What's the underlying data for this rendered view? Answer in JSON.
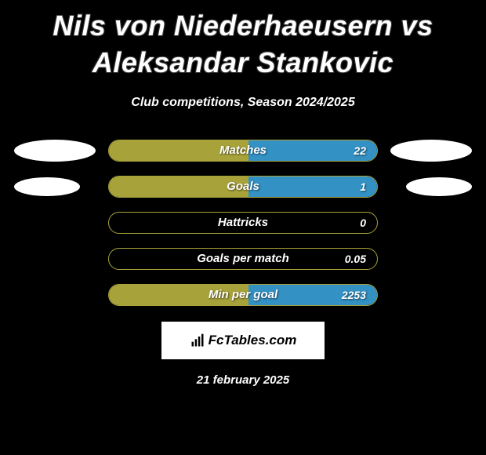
{
  "title": "Nils von Niederhaeusern vs Aleksandar Stankovic",
  "subtitle": "Club competitions, Season 2024/2025",
  "colors": {
    "left": "#a8a23a",
    "right": "#3391c4",
    "border": "#a8a23a",
    "dot": "#ffffff",
    "background": "#000000",
    "text": "#ffffff"
  },
  "stats": [
    {
      "label": "Matches",
      "value_right": "22",
      "fill_left_pct": 52,
      "fill_right_pct": 48,
      "show_left_dot": true,
      "show_right_dot": true,
      "dot_small": false
    },
    {
      "label": "Goals",
      "value_right": "1",
      "fill_left_pct": 52,
      "fill_right_pct": 48,
      "show_left_dot": true,
      "show_right_dot": true,
      "dot_small": true
    },
    {
      "label": "Hattricks",
      "value_right": "0",
      "fill_left_pct": 0,
      "fill_right_pct": 0,
      "show_left_dot": false,
      "show_right_dot": false,
      "dot_small": false
    },
    {
      "label": "Goals per match",
      "value_right": "0.05",
      "fill_left_pct": 0,
      "fill_right_pct": 0,
      "show_left_dot": false,
      "show_right_dot": false,
      "dot_small": false
    },
    {
      "label": "Min per goal",
      "value_right": "2253",
      "fill_left_pct": 52,
      "fill_right_pct": 48,
      "show_left_dot": false,
      "show_right_dot": false,
      "dot_small": false
    }
  ],
  "logo_text": "FcTables.com",
  "date": "21 february 2025"
}
